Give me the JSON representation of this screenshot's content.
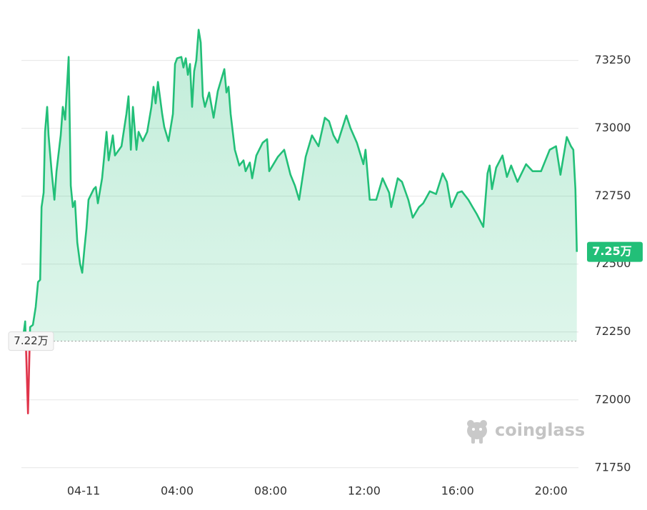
{
  "chart_data": {
    "type": "line",
    "color": "#22bf78",
    "down_color": "#e0344a",
    "grid": true,
    "watermark": "coinglass",
    "reference_line": {
      "value": 72216,
      "label": "7.22万"
    },
    "last_value_label": "7.25万",
    "xlim": [
      -2.6,
      21.2
    ],
    "xticks": [
      {
        "value": 0,
        "label": "04-11"
      },
      {
        "value": 4,
        "label": "04:00"
      },
      {
        "value": 8,
        "label": "08:00"
      },
      {
        "value": 12,
        "label": "12:00"
      },
      {
        "value": 16,
        "label": "16:00"
      },
      {
        "value": 20,
        "label": "20:00"
      }
    ],
    "ylim": [
      71710,
      73470
    ],
    "yticks": [
      71750,
      72000,
      72250,
      72500,
      72750,
      73000,
      73250
    ],
    "x": [
      -2.56,
      -2.5,
      -2.38,
      -2.29,
      -2.17,
      -2.05,
      -1.95,
      -1.86,
      -1.8,
      -1.71,
      -1.65,
      -1.56,
      -1.5,
      -1.37,
      -1.25,
      -1.16,
      -0.98,
      -0.89,
      -0.79,
      -0.64,
      -0.55,
      -0.46,
      -0.37,
      -0.27,
      -0.15,
      -0.06,
      0.03,
      0.12,
      0.21,
      0.43,
      0.52,
      0.61,
      0.79,
      0.98,
      1.07,
      1.25,
      1.34,
      1.62,
      1.83,
      1.92,
      2.02,
      2.11,
      2.26,
      2.35,
      2.53,
      2.72,
      2.9,
      2.99,
      3.08,
      3.18,
      3.36,
      3.45,
      3.63,
      3.82,
      3.91,
      4.0,
      4.18,
      4.27,
      4.37,
      4.46,
      4.55,
      4.64,
      4.73,
      4.82,
      4.92,
      5.01,
      5.1,
      5.19,
      5.37,
      5.56,
      5.74,
      6.02,
      6.11,
      6.2,
      6.29,
      6.47,
      6.66,
      6.84,
      6.93,
      7.11,
      7.21,
      7.39,
      7.66,
      7.85,
      7.94,
      8.31,
      8.58,
      8.85,
      9.04,
      9.22,
      9.5,
      9.77,
      10.05,
      10.32,
      10.5,
      10.69,
      10.87,
      11.24,
      11.42,
      11.69,
      11.97,
      12.06,
      12.24,
      12.52,
      12.79,
      13.07,
      13.16,
      13.44,
      13.62,
      13.89,
      14.08,
      14.35,
      14.53,
      14.81,
      15.08,
      15.36,
      15.54,
      15.73,
      16.0,
      16.18,
      16.46,
      16.64,
      16.82,
      17.1,
      17.28,
      17.37,
      17.47,
      17.65,
      17.92,
      18.11,
      18.29,
      18.56,
      18.93,
      19.21,
      19.57,
      19.94,
      20.21,
      20.4,
      20.67,
      20.85,
      20.95,
      21.04,
      21.1
    ],
    "values": [
      72250,
      72289,
      71950,
      72268,
      72276,
      72342,
      72434,
      72442,
      72710,
      72763,
      72987,
      73079,
      72974,
      72842,
      72737,
      72842,
      72974,
      73079,
      73032,
      73263,
      72789,
      72710,
      72732,
      72579,
      72500,
      72468,
      72553,
      72631,
      72737,
      72776,
      72784,
      72724,
      72816,
      72987,
      72882,
      72974,
      72900,
      72934,
      73053,
      73118,
      72921,
      73079,
      72921,
      72987,
      72953,
      72987,
      73079,
      73153,
      73092,
      73171,
      73053,
      73005,
      72953,
      73053,
      73237,
      73258,
      73263,
      73224,
      73258,
      73197,
      73237,
      73079,
      73211,
      73250,
      73363,
      73316,
      73118,
      73079,
      73132,
      73039,
      73137,
      73218,
      73132,
      73153,
      73053,
      72921,
      72863,
      72882,
      72842,
      72874,
      72816,
      72900,
      72947,
      72960,
      72842,
      72895,
      72921,
      72829,
      72789,
      72737,
      72895,
      72974,
      72934,
      73039,
      73026,
      72974,
      72947,
      73047,
      73000,
      72947,
      72868,
      72921,
      72737,
      72737,
      72816,
      72763,
      72710,
      72816,
      72803,
      72737,
      72671,
      72710,
      72724,
      72768,
      72758,
      72834,
      72803,
      72710,
      72763,
      72768,
      72737,
      72710,
      72684,
      72637,
      72834,
      72863,
      72776,
      72855,
      72900,
      72821,
      72863,
      72803,
      72868,
      72842,
      72842,
      72921,
      72934,
      72829,
      72968,
      72934,
      72921,
      72776,
      72545
    ]
  }
}
